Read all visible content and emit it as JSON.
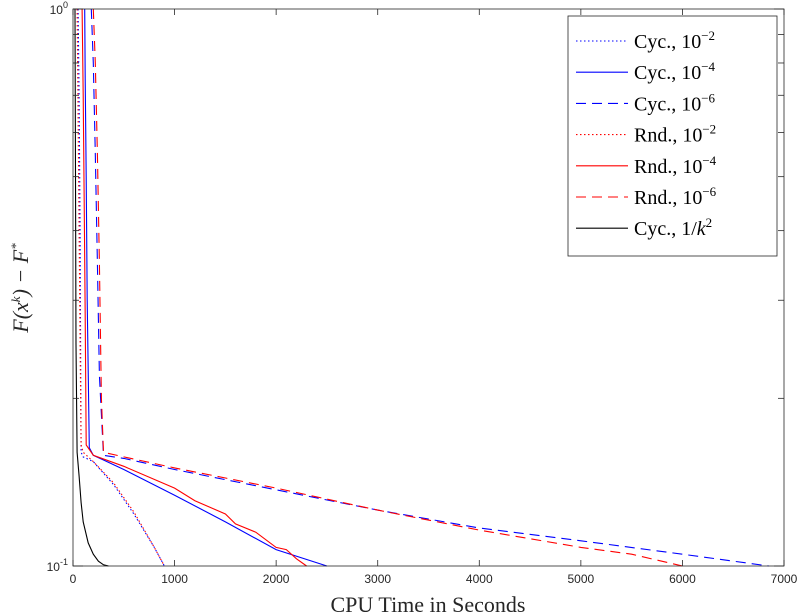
{
  "chart_data": {
    "type": "line",
    "title": "",
    "xlabel": "CPU Time in Seconds",
    "ylabel": "F(x^k) − F*",
    "ylabel_parts": {
      "base": "F(x",
      "sup1": "k",
      "mid": ") − F",
      "sup2": "*"
    },
    "xlim": [
      0,
      7000
    ],
    "ylim": [
      0.1,
      1
    ],
    "yscale": "log",
    "xticks": [
      0,
      1000,
      2000,
      3000,
      4000,
      5000,
      6000,
      7000
    ],
    "xtick_labels": [
      "0",
      "1000",
      "2000",
      "3000",
      "4000",
      "5000",
      "6000",
      "7000"
    ],
    "ytick_labels": [
      {
        "value": 1,
        "base": "10",
        "exp": "0"
      },
      {
        "value": 0.1,
        "base": "10",
        "exp": "-1"
      }
    ],
    "yminor_ticks": [
      0.2,
      0.3,
      0.4,
      0.5,
      0.6,
      0.7,
      0.8,
      0.9
    ],
    "grid": false,
    "legend_position": "top-right",
    "series": [
      {
        "name": "Cyc., 10^-2",
        "label": "Cyc., ",
        "label_base": "10",
        "label_exp": "−2",
        "color": "#0000ff",
        "dash": "dotted",
        "x": [
          50,
          60,
          70,
          75,
          80,
          100,
          200,
          400,
          600,
          800,
          900
        ],
        "y": [
          1,
          0.7,
          0.4,
          0.25,
          0.16,
          0.157,
          0.154,
          0.14,
          0.124,
          0.108,
          0.1
        ]
      },
      {
        "name": "Cyc., 10^-4",
        "label": "Cyc., ",
        "label_base": "10",
        "label_exp": "−4",
        "color": "#0000ff",
        "dash": "solid",
        "x": [
          115,
          120,
          130,
          140,
          160,
          200,
          300,
          500,
          1000,
          1500,
          2000,
          2500
        ],
        "y": [
          1,
          0.75,
          0.5,
          0.3,
          0.163,
          0.158,
          0.155,
          0.149,
          0.134,
          0.12,
          0.107,
          0.1
        ]
      },
      {
        "name": "Cyc., 10^-6",
        "label": "Cyc., ",
        "label_base": "10",
        "label_exp": "−6",
        "color": "#0000ff",
        "dash": "dashed",
        "x": [
          180,
          200,
          220,
          240,
          260,
          300,
          500,
          1000,
          2000,
          3000,
          4000,
          5000,
          6000,
          6850
        ],
        "y": [
          1,
          0.8,
          0.55,
          0.35,
          0.22,
          0.158,
          0.156,
          0.149,
          0.137,
          0.126,
          0.117,
          0.111,
          0.105,
          0.1
        ]
      },
      {
        "name": "Rnd., 10^-2",
        "label": "Rnd., ",
        "label_base": "10",
        "label_exp": "−2",
        "color": "#ff0000",
        "dash": "dotted",
        "x": [
          40,
          50,
          60,
          70,
          80,
          100,
          200,
          400,
          600,
          800,
          900
        ],
        "y": [
          1,
          0.65,
          0.4,
          0.25,
          0.165,
          0.16,
          0.154,
          0.141,
          0.125,
          0.108,
          0.1
        ]
      },
      {
        "name": "Rnd., 10^-4",
        "label": "Rnd., ",
        "label_base": "10",
        "label_exp": "−4",
        "color": "#ff0000",
        "dash": "solid",
        "x": [
          90,
          100,
          110,
          120,
          130,
          200,
          500,
          1000,
          1200,
          1500,
          1600,
          1800,
          2000,
          2100,
          2200,
          2300
        ],
        "y": [
          1,
          0.7,
          0.45,
          0.28,
          0.165,
          0.158,
          0.151,
          0.138,
          0.131,
          0.124,
          0.119,
          0.115,
          0.108,
          0.107,
          0.103,
          0.1
        ]
      },
      {
        "name": "Rnd., 10^-6",
        "label": "Rnd., ",
        "label_base": "10",
        "label_exp": "−6",
        "color": "#ff0000",
        "dash": "dashed",
        "x": [
          200,
          220,
          240,
          260,
          280,
          300,
          500,
          1000,
          2000,
          3000,
          4000,
          5000,
          5500,
          6000
        ],
        "y": [
          1,
          0.8,
          0.55,
          0.35,
          0.2,
          0.16,
          0.157,
          0.15,
          0.138,
          0.126,
          0.116,
          0.108,
          0.105,
          0.1
        ]
      },
      {
        "name": "Cyc., 1/k^2",
        "label": "Cyc., 1/",
        "label_base": "k",
        "label_exp": "2",
        "color": "#000000",
        "dash": "solid",
        "x": [
          20,
          25,
          30,
          40,
          60,
          80,
          100,
          150,
          200,
          250,
          300,
          350
        ],
        "y": [
          1,
          0.5,
          0.25,
          0.16,
          0.145,
          0.13,
          0.12,
          0.11,
          0.105,
          0.102,
          0.1005,
          0.1
        ]
      }
    ]
  }
}
